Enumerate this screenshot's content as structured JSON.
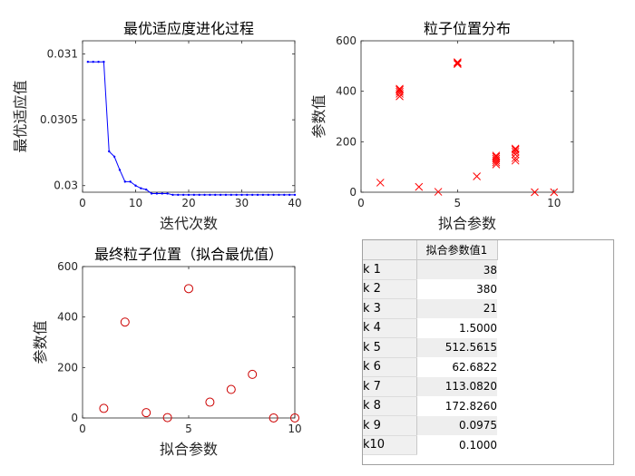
{
  "chart_data": [
    {
      "type": "line",
      "title": "最优适应度进化过程",
      "xlabel": "迭代次数",
      "ylabel": "最优适应值",
      "xlim": [
        0,
        40
      ],
      "ylim": [
        0.02995,
        0.0311
      ],
      "xticks": [
        "0",
        "10",
        "20",
        "30",
        "40"
      ],
      "yticks": [
        "0.03",
        "0.0305",
        "0.031"
      ],
      "x": [
        1,
        2,
        3,
        4,
        5,
        6,
        7,
        8,
        9,
        10,
        11,
        12,
        13,
        14,
        15,
        16,
        17,
        18,
        19,
        20,
        21,
        22,
        23,
        24,
        25,
        26,
        27,
        28,
        29,
        30,
        31,
        32,
        33,
        34,
        35,
        36,
        37,
        38,
        39,
        40
      ],
      "values": [
        0.03094,
        0.03094,
        0.03094,
        0.03094,
        0.03026,
        0.03022,
        0.03012,
        0.03003,
        0.03003,
        0.03,
        0.02998,
        0.02997,
        0.02994,
        0.02994,
        0.02994,
        0.02994,
        0.02993,
        0.02993,
        0.02993,
        0.02993,
        0.02993,
        0.02993,
        0.02993,
        0.02993,
        0.02993,
        0.02993,
        0.02993,
        0.02993,
        0.02993,
        0.02993,
        0.02993,
        0.02993,
        0.02993,
        0.02993,
        0.02993,
        0.02993,
        0.02993,
        0.02993,
        0.02993,
        0.02993
      ],
      "color": "#0000ff",
      "grid": false
    },
    {
      "type": "scatter",
      "title": "粒子位置分布",
      "xlabel": "拟合参数",
      "ylabel": "参数值",
      "xlim": [
        0,
        11
      ],
      "ylim": [
        0,
        600
      ],
      "xticks": [
        "0",
        "5",
        "10"
      ],
      "yticks": [
        "0",
        "200",
        "400",
        "600"
      ],
      "marker": "x",
      "color": "#ff0000",
      "points": [
        [
          1,
          38
        ],
        [
          2,
          380
        ],
        [
          2,
          390
        ],
        [
          2,
          398
        ],
        [
          2,
          405
        ],
        [
          2,
          410
        ],
        [
          3,
          21
        ],
        [
          4,
          1.5
        ],
        [
          5,
          508
        ],
        [
          5,
          512
        ],
        [
          5,
          515
        ],
        [
          6,
          63
        ],
        [
          7,
          110
        ],
        [
          7,
          118
        ],
        [
          7,
          126
        ],
        [
          7,
          133
        ],
        [
          7,
          140
        ],
        [
          7,
          145
        ],
        [
          8,
          125
        ],
        [
          8,
          135
        ],
        [
          8,
          150
        ],
        [
          8,
          160
        ],
        [
          8,
          168
        ],
        [
          8,
          173
        ],
        [
          9,
          0.1
        ],
        [
          10,
          0.1
        ]
      ],
      "grid": false
    },
    {
      "type": "scatter",
      "title": "最终粒子位置（拟合最优值）",
      "xlabel": "拟合参数",
      "ylabel": "参数值",
      "xlim": [
        0,
        10
      ],
      "ylim": [
        0,
        600
      ],
      "xticks": [
        "0",
        "5",
        "10"
      ],
      "yticks": [
        "0",
        "200",
        "400",
        "600"
      ],
      "marker": "o",
      "color": "#cc0000",
      "x": [
        1,
        2,
        3,
        4,
        5,
        6,
        7,
        8,
        9,
        10
      ],
      "values": [
        38,
        380,
        21,
        1.5,
        512.5615,
        62.6822,
        113.082,
        172.826,
        0.0975,
        0.1
      ],
      "grid": false
    },
    {
      "type": "table",
      "column_header": "拟合参数值1",
      "rows": [
        {
          "label": "k 1",
          "value": "38"
        },
        {
          "label": "k 2",
          "value": "380"
        },
        {
          "label": "k 3",
          "value": "21"
        },
        {
          "label": "k 4",
          "value": "1.5000"
        },
        {
          "label": "k 5",
          "value": "512.5615"
        },
        {
          "label": "k 6",
          "value": "62.6822"
        },
        {
          "label": "k 7",
          "value": "113.0820"
        },
        {
          "label": "k 8",
          "value": "172.8260"
        },
        {
          "label": "k 9",
          "value": "0.0975"
        },
        {
          "label": "k10",
          "value": "0.1000"
        }
      ]
    }
  ]
}
